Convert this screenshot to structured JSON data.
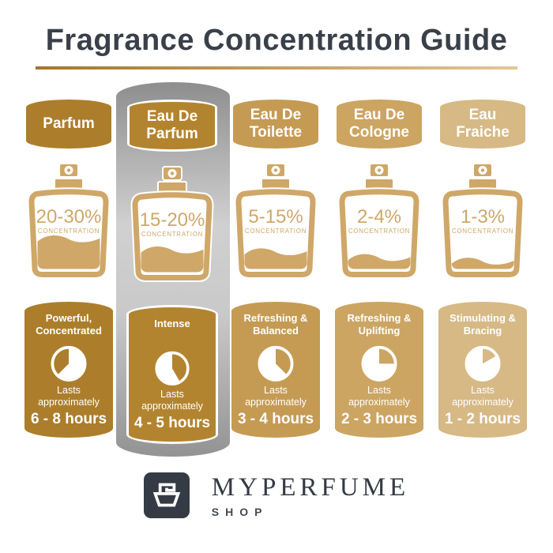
{
  "title": "Fragrance Concentration Guide",
  "theme": {
    "title_color": "#3A4049",
    "rule_gradient_start": "#A5752B",
    "rule_gradient_end": "#E2C795",
    "bottle_color": "#CFA768",
    "highlight_gray_top": "#8E8E8E",
    "highlight_gray_mid": "#D0D0D0",
    "highlight_gray_bottom": "#939393",
    "logo_box_color": "#343B45",
    "text_dark": "#333A44"
  },
  "concentration_label": "CONCENTRATION",
  "lasts_label": "Lasts approximately",
  "columns": [
    {
      "name": "Parfum",
      "color": "#AC7E2B",
      "concentration": "20-30%",
      "fill_percent": 42,
      "character": "Powerful, Concentrated",
      "duration": "6 - 8 hours",
      "pie": {
        "white_start": 0,
        "white_end": 225
      },
      "highlighted": false
    },
    {
      "name": "Eau De Parfum",
      "color": "#B3842F",
      "concentration": "15-20%",
      "fill_percent": 31,
      "character": "Intense",
      "duration": "4 - 5 hours",
      "pie": {
        "white_start": 150,
        "white_end": 360
      },
      "highlighted": true
    },
    {
      "name": "Eau De Toilette",
      "color": "#C59B54",
      "concentration": "5-15%",
      "fill_percent": 24,
      "character": "Refreshing & Balanced",
      "duration": "3 - 4 hours",
      "pie": {
        "white_start": 135,
        "white_end": 360
      },
      "highlighted": false
    },
    {
      "name": "Eau De Cologne",
      "color": "#CCA563",
      "concentration": "2-4%",
      "fill_percent": 16,
      "character": "Refreshing & Uplifting",
      "duration": "2 - 3 hours",
      "pie": {
        "white_start": 90,
        "white_end": 360
      },
      "highlighted": false
    },
    {
      "name": "Eau Fraiche",
      "color": "#D7B986",
      "concentration": "1-3%",
      "fill_percent": 11,
      "character": "Stimulating & Bracing",
      "duration": "1 - 2 hours",
      "pie": {
        "white_start": 60,
        "white_end": 360
      },
      "highlighted": false
    }
  ],
  "footer": {
    "brand": "MYPERFUME",
    "sub": "SHOP"
  }
}
